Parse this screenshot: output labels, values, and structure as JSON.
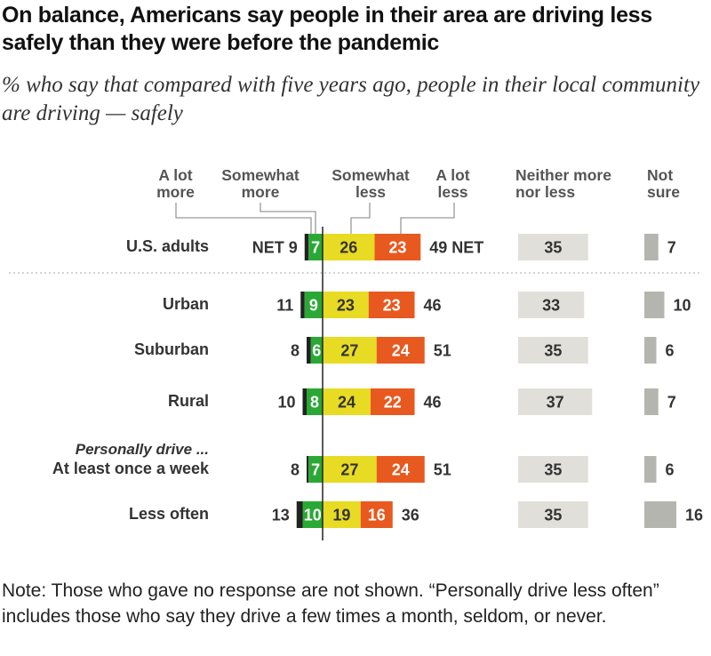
{
  "title": "On balance, Americans say people in their area are driving less safely than they were before the pandemic",
  "subtitle": "% who say that compared with five years ago, people in their local community are driving — safely",
  "note": "Note: Those who gave no response are not shown. “Personally drive less often” includes those who say they drive a few times a month, seldom, or never.",
  "chart_data": {
    "type": "bar",
    "stacked": "diverging",
    "columns": [
      "A lot more",
      "Somewhat more",
      "Somewhat less",
      "A lot less",
      "Neither more nor less",
      "Not sure"
    ],
    "colors": {
      "a_lot_more": "#222222",
      "somewhat_more": "#2aa836",
      "somewhat_less": "#e8db23",
      "a_lot_less": "#e8591f",
      "neither": "#e0dfd9",
      "not_sure": "#b5b5b0"
    },
    "group_label": "Personally drive ...",
    "net_label": "NET",
    "rows": [
      {
        "label": "U.S. adults",
        "a_lot_more": 2,
        "somewhat_more": 7,
        "somewhat_less": 26,
        "a_lot_less": 23,
        "net_more": 9,
        "net_less": 49,
        "neither": 35,
        "not_sure": 7
      },
      {
        "label": "Urban",
        "a_lot_more": 2,
        "somewhat_more": 9,
        "somewhat_less": 23,
        "a_lot_less": 23,
        "net_more": 11,
        "net_less": 46,
        "neither": 33,
        "not_sure": 10
      },
      {
        "label": "Suburban",
        "a_lot_more": 2,
        "somewhat_more": 6,
        "somewhat_less": 27,
        "a_lot_less": 24,
        "net_more": 8,
        "net_less": 51,
        "neither": 35,
        "not_sure": 6
      },
      {
        "label": "Rural",
        "a_lot_more": 2,
        "somewhat_more": 8,
        "somewhat_less": 24,
        "a_lot_less": 22,
        "net_more": 10,
        "net_less": 46,
        "neither": 37,
        "not_sure": 7
      },
      {
        "label": "At least once a week",
        "a_lot_more": 1,
        "somewhat_more": 7,
        "somewhat_less": 27,
        "a_lot_less": 24,
        "net_more": 8,
        "net_less": 51,
        "neither": 35,
        "not_sure": 6
      },
      {
        "label": "Less often",
        "a_lot_more": 3,
        "somewhat_more": 10,
        "somewhat_less": 19,
        "a_lot_less": 16,
        "net_more": 13,
        "net_less": 36,
        "neither": 35,
        "not_sure": 16
      }
    ]
  }
}
